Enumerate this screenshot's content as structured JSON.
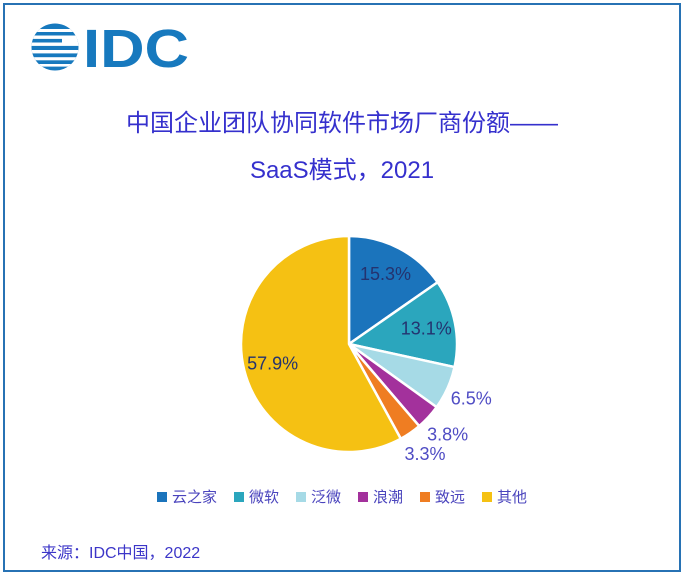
{
  "logo": {
    "text": "IDC",
    "color": "#1779be"
  },
  "chart_data": {
    "type": "pie",
    "title": "中国企业团队协同软件市场厂商份额——",
    "subtitle": "SaaS模式，2021",
    "slices": [
      {
        "label": "云之家",
        "value": 15.3,
        "color": "#1b74bc"
      },
      {
        "label": "微软",
        "value": 13.1,
        "color": "#2ba6bd"
      },
      {
        "label": "泛微",
        "value": 6.5,
        "color": "#a6dae6"
      },
      {
        "label": "浪潮",
        "value": 3.8,
        "color": "#a3319c"
      },
      {
        "label": "致远",
        "value": 3.3,
        "color": "#ef7d22"
      },
      {
        "label": "其他",
        "value": 57.9,
        "color": "#f5c113"
      }
    ],
    "value_suffix": "%",
    "start_angle_deg": 0,
    "direction": "clockwise",
    "legend_position": "bottom",
    "slice_gap_color": "#ffffff",
    "inside_label_color": "#24336f",
    "outside_label_color": "#4f4cc4",
    "title_color": "#3530cd"
  },
  "source": {
    "text": "来源：IDC中国，2022"
  },
  "page": {
    "border_color": "#2772b4",
    "background": "#ffffff"
  }
}
